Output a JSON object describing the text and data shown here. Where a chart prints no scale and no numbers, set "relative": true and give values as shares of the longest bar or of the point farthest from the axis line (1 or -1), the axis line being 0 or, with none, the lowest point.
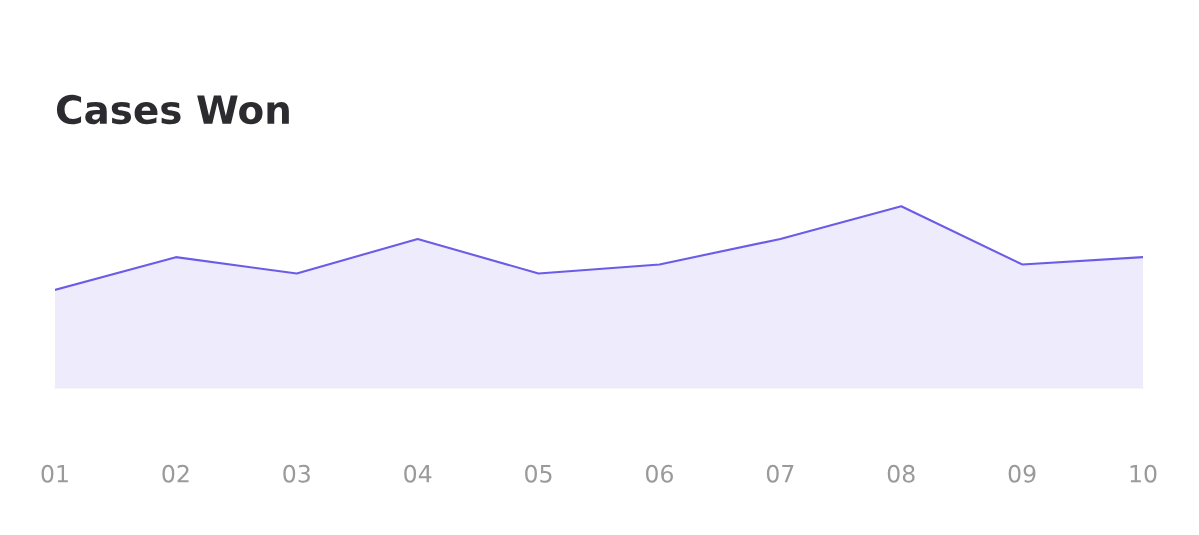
{
  "chart_data": {
    "type": "area",
    "title": "Cases Won",
    "relative": true,
    "categories": [
      "01",
      "02",
      "03",
      "04",
      "05",
      "06",
      "07",
      "08",
      "09",
      "10"
    ],
    "series": [
      {
        "color": "#6b5ce7",
        "values": [
          0.54,
          0.72,
          0.63,
          0.82,
          0.63,
          0.68,
          0.82,
          1,
          0.68,
          0.72
        ]
      }
    ],
    "grid": false,
    "legend": false
  }
}
